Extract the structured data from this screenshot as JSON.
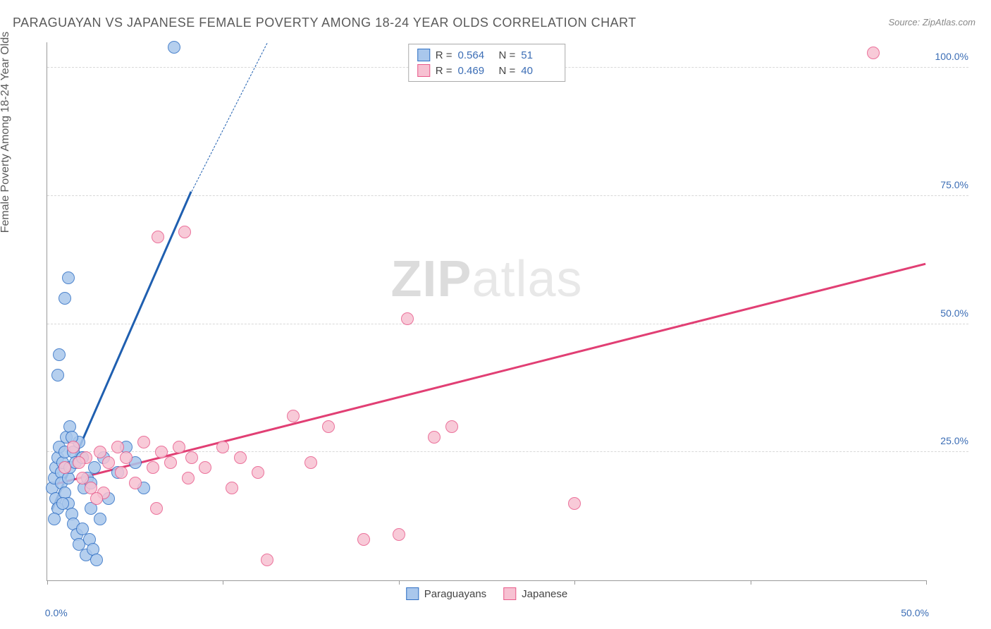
{
  "title": "PARAGUAYAN VS JAPANESE FEMALE POVERTY AMONG 18-24 YEAR OLDS CORRELATION CHART",
  "source": "Source: ZipAtlas.com",
  "watermark_zip": "ZIP",
  "watermark_atlas": "atlas",
  "y_axis_label": "Female Poverty Among 18-24 Year Olds",
  "chart": {
    "type": "scatter",
    "background_color": "#ffffff",
    "grid_color": "#d8d8d8",
    "axis_color": "#9a9a9a",
    "xlim": [
      0,
      50
    ],
    "ylim": [
      0,
      105
    ],
    "xticks": [
      0,
      10,
      20,
      30,
      40,
      50
    ],
    "xtick_labels": [
      "0.0%",
      "",
      "",
      "",
      "",
      "50.0%"
    ],
    "yticks": [
      25,
      50,
      75,
      100
    ],
    "ytick_labels": [
      "25.0%",
      "50.0%",
      "75.0%",
      "100.0%"
    ],
    "point_radius": 9,
    "point_stroke_width": 1.5,
    "point_fill_opacity": 0.35,
    "series": [
      {
        "name": "Paraguayans",
        "stroke": "#2f6fc4",
        "fill": "#a9c7ec",
        "trend_color": "#1f5fb0",
        "trend_width": 3,
        "trend_start": [
          0.3,
          14
        ],
        "trend_end_solid": [
          8.2,
          76
        ],
        "trend_end_dash": [
          12.5,
          105
        ],
        "R": "0.564",
        "N": "51",
        "points": [
          [
            0.3,
            18
          ],
          [
            0.4,
            20
          ],
          [
            0.5,
            22
          ],
          [
            0.5,
            16
          ],
          [
            0.6,
            24
          ],
          [
            0.6,
            14
          ],
          [
            0.7,
            26
          ],
          [
            0.8,
            21
          ],
          [
            0.8,
            19
          ],
          [
            0.9,
            23
          ],
          [
            1.0,
            25
          ],
          [
            1.0,
            17
          ],
          [
            1.1,
            28
          ],
          [
            1.2,
            20
          ],
          [
            1.2,
            15
          ],
          [
            1.3,
            22
          ],
          [
            1.4,
            13
          ],
          [
            1.5,
            25
          ],
          [
            1.5,
            11
          ],
          [
            1.6,
            23
          ],
          [
            1.7,
            9
          ],
          [
            1.8,
            27
          ],
          [
            1.8,
            7
          ],
          [
            2.0,
            24
          ],
          [
            2.0,
            10
          ],
          [
            2.1,
            18
          ],
          [
            2.2,
            5
          ],
          [
            2.3,
            20
          ],
          [
            2.4,
            8
          ],
          [
            2.5,
            14
          ],
          [
            2.6,
            6
          ],
          [
            2.7,
            22
          ],
          [
            2.8,
            4
          ],
          [
            3.0,
            12
          ],
          [
            3.2,
            24
          ],
          [
            3.5,
            16
          ],
          [
            4.0,
            21
          ],
          [
            4.5,
            26
          ],
          [
            5.0,
            23
          ],
          [
            5.5,
            18
          ],
          [
            0.6,
            40
          ],
          [
            0.7,
            44
          ],
          [
            1.0,
            55
          ],
          [
            1.2,
            59
          ],
          [
            2.0,
            24
          ],
          [
            2.5,
            19
          ],
          [
            1.3,
            30
          ],
          [
            7.2,
            104
          ],
          [
            0.4,
            12
          ],
          [
            0.9,
            15
          ],
          [
            1.4,
            28
          ]
        ]
      },
      {
        "name": "Japanese",
        "stroke": "#e85a8a",
        "fill": "#f7c1d2",
        "trend_color": "#e13f74",
        "trend_width": 3,
        "trend_start": [
          0.5,
          19
        ],
        "trend_end_solid": [
          50,
          62
        ],
        "trend_end_dash": null,
        "R": "0.469",
        "N": "40",
        "points": [
          [
            1.0,
            22
          ],
          [
            1.5,
            26
          ],
          [
            2.0,
            20
          ],
          [
            2.2,
            24
          ],
          [
            2.5,
            18
          ],
          [
            3.0,
            25
          ],
          [
            3.2,
            17
          ],
          [
            3.5,
            23
          ],
          [
            4.0,
            26
          ],
          [
            4.2,
            21
          ],
          [
            4.5,
            24
          ],
          [
            5.0,
            19
          ],
          [
            5.5,
            27
          ],
          [
            6.0,
            22
          ],
          [
            6.2,
            14
          ],
          [
            6.5,
            25
          ],
          [
            7.0,
            23
          ],
          [
            7.5,
            26
          ],
          [
            8.0,
            20
          ],
          [
            8.2,
            24
          ],
          [
            9.0,
            22
          ],
          [
            10.0,
            26
          ],
          [
            10.5,
            18
          ],
          [
            11.0,
            24
          ],
          [
            12.0,
            21
          ],
          [
            12.5,
            4
          ],
          [
            14.0,
            32
          ],
          [
            15.0,
            23
          ],
          [
            16.0,
            30
          ],
          [
            18.0,
            8
          ],
          [
            20.0,
            9
          ],
          [
            20.5,
            51
          ],
          [
            22.0,
            28
          ],
          [
            23.0,
            30
          ],
          [
            30.0,
            15
          ],
          [
            6.3,
            67
          ],
          [
            7.8,
            68
          ],
          [
            47.0,
            103
          ],
          [
            1.8,
            23
          ],
          [
            2.8,
            16
          ]
        ]
      }
    ],
    "legend_bottom": [
      {
        "label": "Paraguayans",
        "stroke": "#2f6fc4",
        "fill": "#a9c7ec"
      },
      {
        "label": "Japanese",
        "stroke": "#e85a8a",
        "fill": "#f7c1d2"
      }
    ],
    "legend_top_labels": {
      "R": "R =",
      "N": "N ="
    }
  }
}
